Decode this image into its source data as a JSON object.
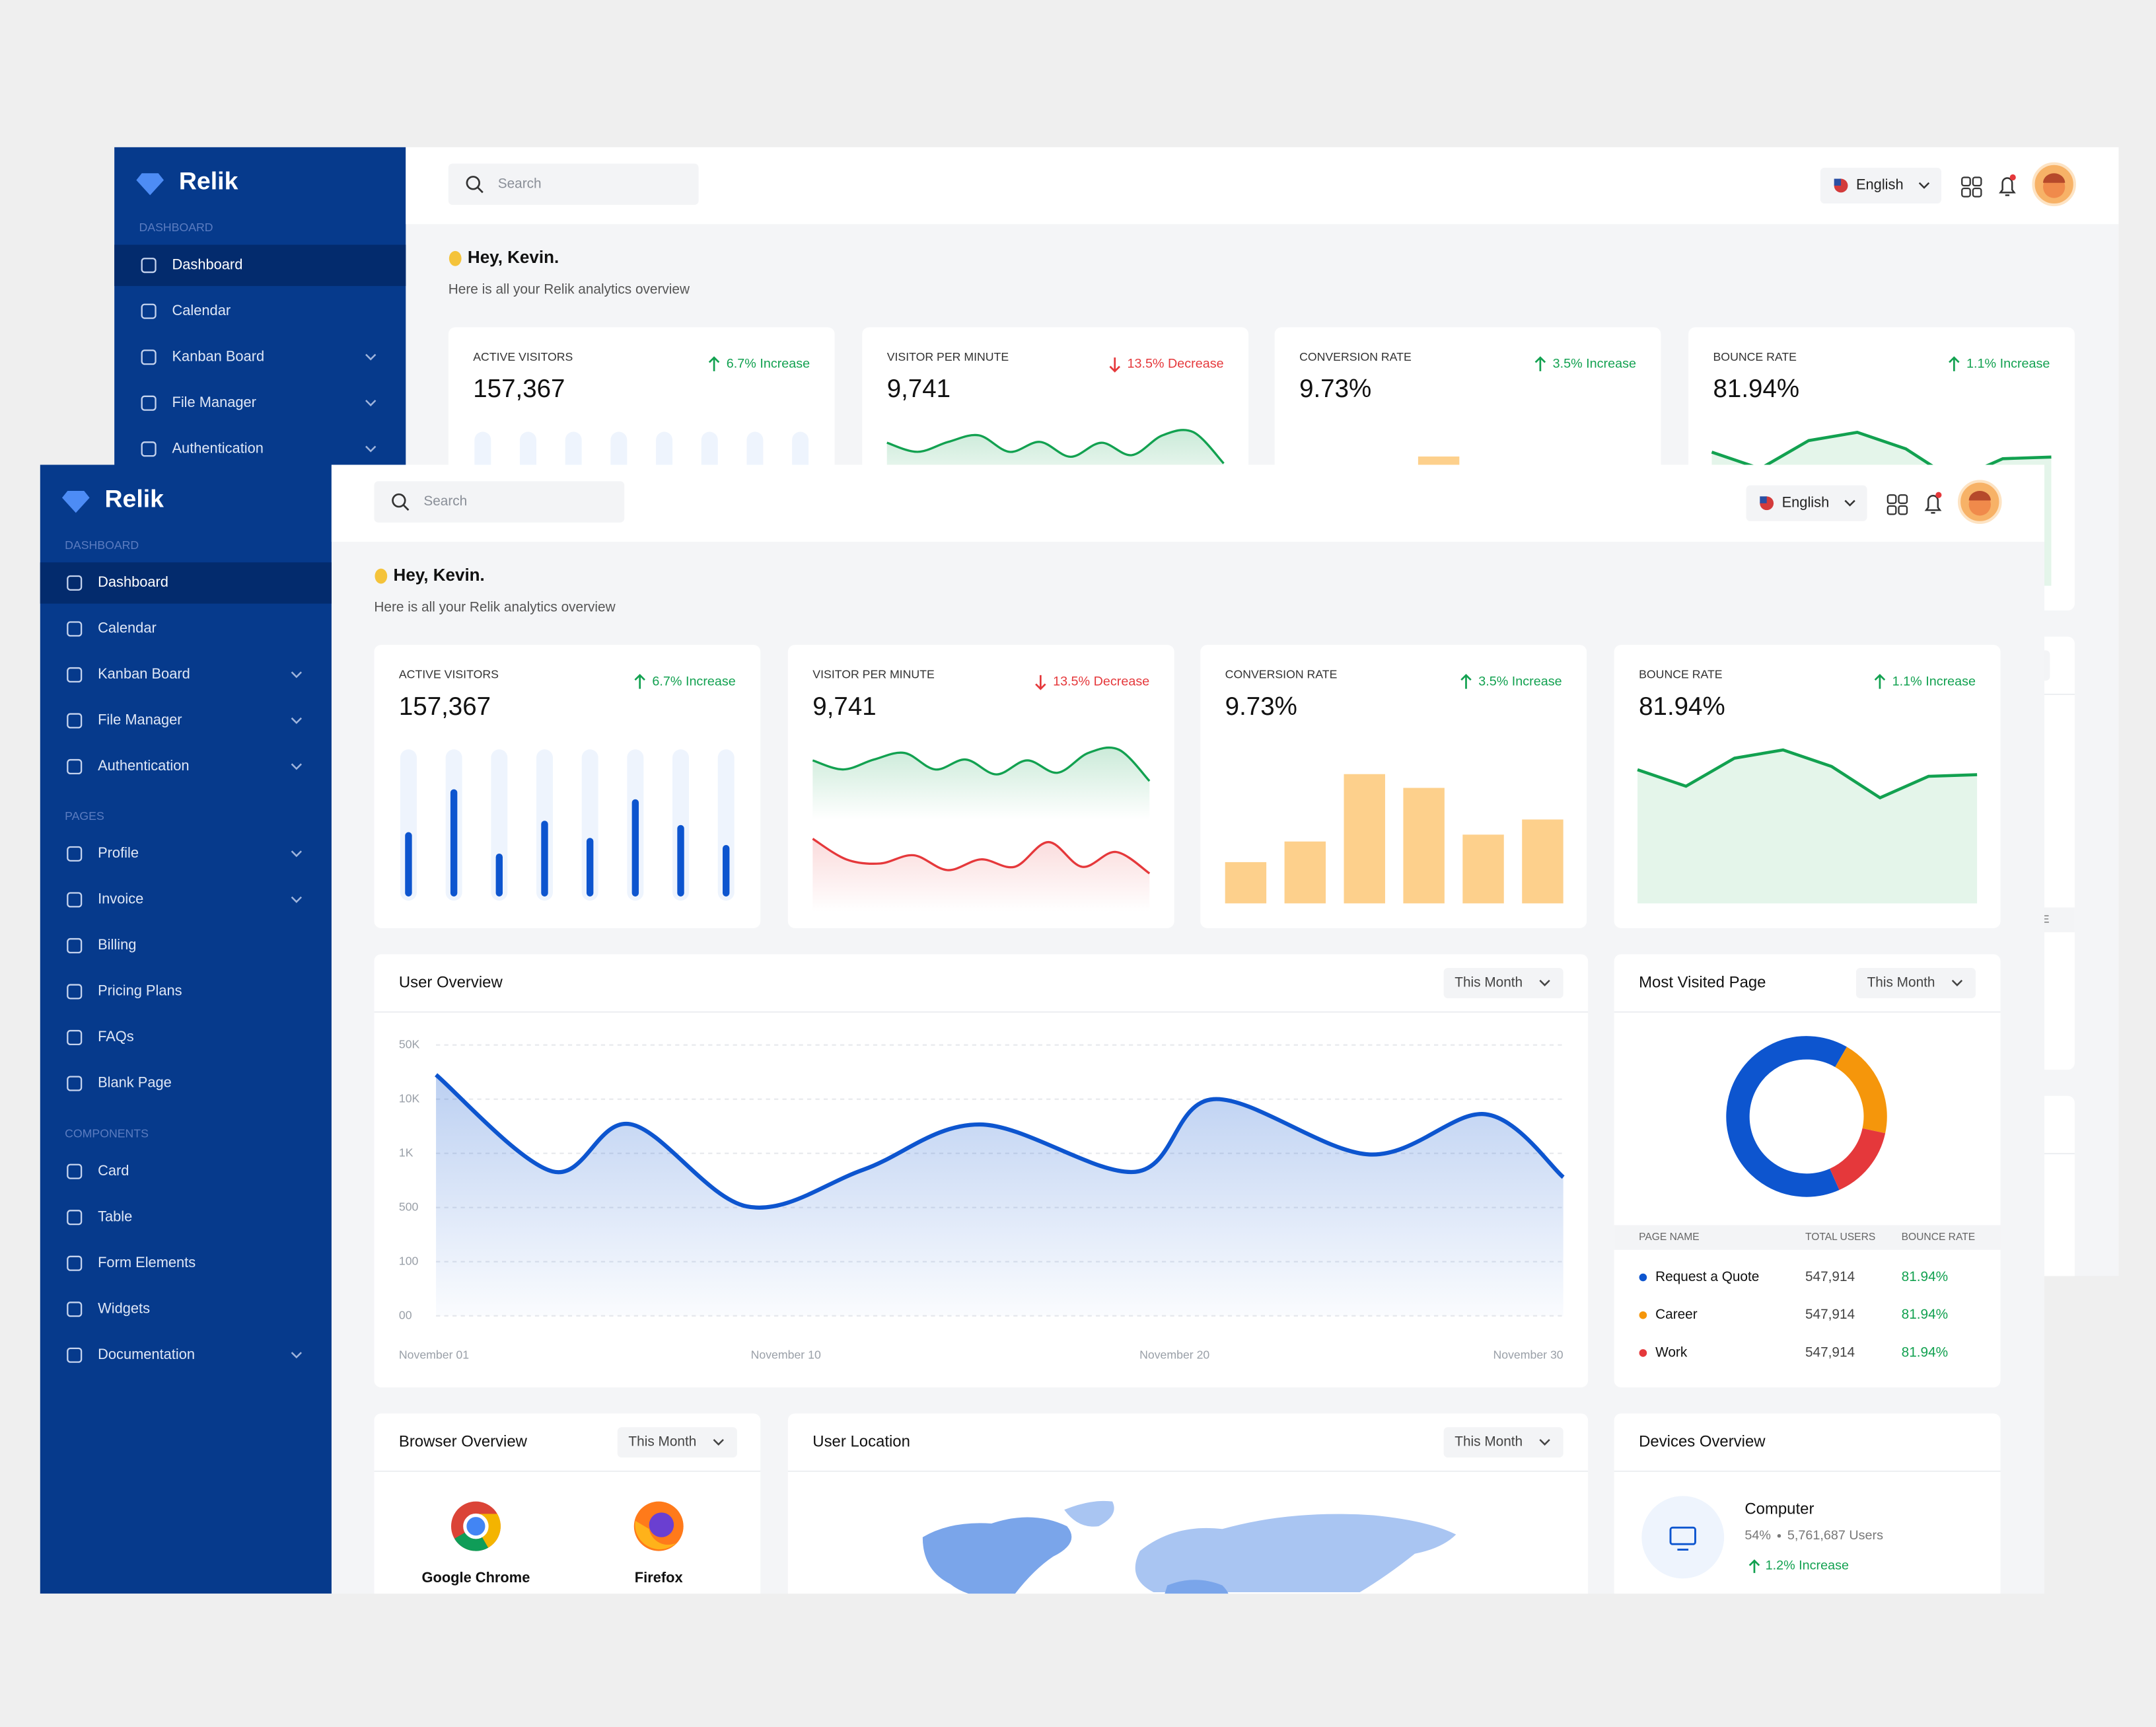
{
  "sidebar": {
    "brand": "Relik",
    "sections": [
      {
        "title": "DASHBOARD",
        "items": [
          {
            "label": "Dashboard",
            "active": true
          },
          {
            "label": "Calendar"
          },
          {
            "label": "Kanban Board",
            "submenu": true
          },
          {
            "label": "File Manager",
            "submenu": true
          },
          {
            "label": "Authentication",
            "submenu": true
          }
        ]
      },
      {
        "title": "PAGES",
        "items": [
          {
            "label": "Profile",
            "submenu": true
          },
          {
            "label": "Invoice",
            "submenu": true
          },
          {
            "label": "Billing"
          },
          {
            "label": "Pricing Plans"
          },
          {
            "label": "FAQs"
          },
          {
            "label": "Blank Page"
          }
        ]
      },
      {
        "title": "COMPONENTS",
        "items": [
          {
            "label": "Card"
          },
          {
            "label": "Table"
          },
          {
            "label": "Form Elements"
          },
          {
            "label": "Widgets"
          },
          {
            "label": "Documentation",
            "submenu": true
          }
        ]
      }
    ]
  },
  "header": {
    "search_placeholder": "Search",
    "language": "English"
  },
  "greeting": {
    "title": "Hey, Kevin.",
    "subtitle": "Here is all your Relik analytics overview"
  },
  "stat_cards": [
    {
      "title": "ACTIVE VISITORS",
      "value": "157,367",
      "change": "6.7% Increase",
      "trend": "up",
      "chart_data": {
        "type": "bar",
        "style": "track",
        "values": [
          45,
          75,
          30,
          53,
          41,
          68,
          50,
          36
        ],
        "ylim": [
          0,
          100
        ],
        "color": "#0d55cf"
      }
    },
    {
      "title": "VISITOR PER MINUTE",
      "value": "9,741",
      "change": "13.5% Decrease",
      "trend": "down",
      "chart_data": {
        "type": "line",
        "ylim": [
          0,
          100
        ],
        "series": [
          {
            "color": "#12a150",
            "values": [
              87.5,
              82,
              88,
              92,
              82,
              88,
              79,
              87.5,
              80,
              92,
              94,
              75
            ]
          },
          {
            "color": "#e5383b",
            "values": [
              40,
              27.5,
              25,
              30,
              21,
              27.5,
              23,
              38,
              23,
              32,
              19
            ]
          }
        ]
      }
    },
    {
      "title": "CONVERSION RATE",
      "value": "9.73%",
      "change": "3.5% Increase",
      "trend": "up",
      "chart_data": {
        "type": "bar",
        "style": "plain",
        "values": [
          30,
          45,
          94,
          84,
          50,
          61
        ],
        "ylim": [
          0,
          100
        ],
        "color": "#fdd08c"
      }
    },
    {
      "title": "BOUNCE RATE",
      "value": "81.94%",
      "change": "1.1% Increase",
      "trend": "up",
      "chart_data": {
        "type": "area",
        "values": [
          81,
          71,
          88,
          93,
          83,
          64,
          77,
          78
        ],
        "ylim": [
          0,
          100
        ],
        "color": "#12a150"
      }
    }
  ],
  "user_overview": {
    "title": "User Overview",
    "filter": "This Month",
    "chart_data": {
      "type": "area",
      "x": [
        1,
        4,
        6,
        9,
        12,
        15,
        19,
        21,
        25,
        28,
        30
      ],
      "values": [
        28000,
        833,
        5850,
        510,
        850,
        5800,
        830,
        10000,
        990,
        7500,
        780
      ],
      "xlim": [
        1,
        30
      ],
      "xticks": [
        {
          "value": 1,
          "label": "November 01"
        },
        {
          "value": 10,
          "label": "November 10"
        },
        {
          "value": 20,
          "label": "November 20"
        },
        {
          "value": 30,
          "label": "November 30"
        }
      ],
      "ylim": [
        0,
        50000
      ],
      "yticks": [
        {
          "value": 0,
          "label": "00"
        },
        100,
        500,
        {
          "value": 1000,
          "label": "1K"
        },
        {
          "value": 10000,
          "label": "10K"
        },
        {
          "value": 50000,
          "label": "50K"
        }
      ],
      "grid": true,
      "color": "#0d55cf"
    }
  },
  "most_visited": {
    "title": "Most Visited Page",
    "filter": "This Month",
    "chart_data": {
      "type": "donut",
      "categories": [
        "Request a Quote",
        "Career",
        "Work"
      ],
      "values": [
        65,
        20,
        15
      ],
      "colors": [
        "#0d55cf",
        "#f5960b",
        "#e5383b"
      ]
    },
    "table": {
      "columns": [
        "PAGE NAME",
        "TOTAL USERS",
        "BOUNCE RATE"
      ],
      "rows": [
        [
          "Request a Quote",
          "547,914",
          "81.94%"
        ],
        [
          "Career",
          "547,914",
          "81.94%"
        ],
        [
          "Work",
          "547,914",
          "81.94%"
        ]
      ]
    }
  },
  "browser_overview": {
    "title": "Browser Overview",
    "filter": "This Month",
    "browsers": [
      "Google Chrome",
      "Firefox"
    ]
  },
  "user_location": {
    "title": "User Location",
    "filter": "This Month"
  },
  "devices_overview": {
    "title": "Devices Overview",
    "device": {
      "name": "Computer",
      "share": "54%",
      "users": "5,761,687 Users",
      "change": "1.2% Increase"
    }
  }
}
